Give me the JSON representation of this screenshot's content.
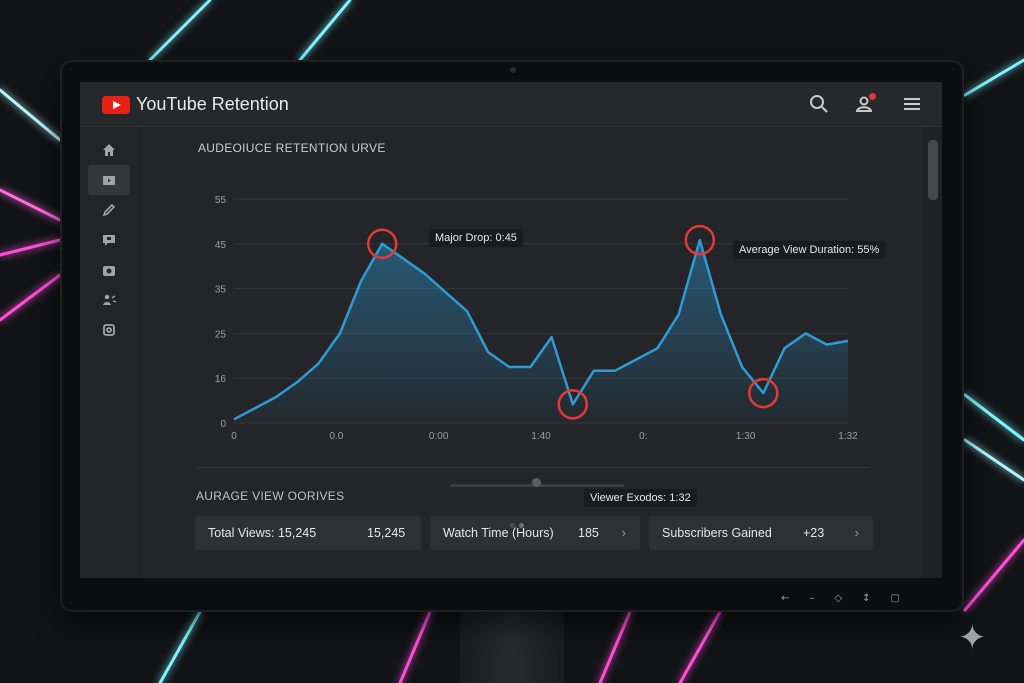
{
  "app": {
    "title": "YouTube Retention"
  },
  "header": {
    "icons": [
      "search-icon",
      "account-icon",
      "menu-icon"
    ],
    "notification_badge": "1"
  },
  "sidebar": {
    "items": [
      {
        "icon": "home-icon",
        "active": false
      },
      {
        "icon": "video-icon",
        "active": true
      },
      {
        "icon": "edit-icon",
        "active": false
      },
      {
        "icon": "comment-icon",
        "active": false
      },
      {
        "icon": "camera-icon",
        "active": false
      },
      {
        "icon": "people-icon",
        "active": false
      },
      {
        "icon": "settings-icon",
        "active": false
      }
    ]
  },
  "chart_data": {
    "type": "area",
    "title": "AUDEOIUCE RETENTION  URVE",
    "y_ticks": [
      "0",
      "16",
      "25",
      "35",
      "45",
      "55"
    ],
    "x_ticks": [
      "0",
      "0.0",
      "0:00",
      "1:40",
      "0:",
      "1:30",
      "1:32"
    ],
    "ylim": [
      0,
      60
    ],
    "grid": true,
    "series": [
      {
        "values": [
          1,
          4,
          7,
          11,
          16,
          24,
          38,
          48,
          44,
          40,
          35,
          30,
          19,
          15,
          15,
          23,
          5,
          14,
          14,
          17,
          20,
          29,
          49,
          29,
          15,
          8,
          20,
          24,
          21,
          22
        ],
        "color": "#2f9bd4"
      }
    ],
    "annotations": [
      {
        "label": "Major Drop: 0:45"
      },
      {
        "label": "Average View Duration: 55%"
      },
      {
        "label": "Viewer Exodos: 1:32"
      }
    ]
  },
  "summary": {
    "title": "AURAGE VIEW OORIVES",
    "cards": [
      {
        "label": "Total Views: 15,245",
        "value": "15,245"
      },
      {
        "label": "Watch Time (Hours)",
        "value": "185",
        "chevron": "›"
      },
      {
        "label": "Subscribers Gained",
        "value": "+23",
        "chevron": "›"
      }
    ]
  },
  "monitor": {
    "buttons": [
      "←",
      "–",
      "◇",
      "↕",
      "▢"
    ]
  },
  "colors": {
    "accent": "#2f9bd4",
    "marker": "#e53935",
    "brand": "#e62117",
    "neon_pink": "#ff3fd2",
    "neon_cyan": "#3fe6ff"
  }
}
